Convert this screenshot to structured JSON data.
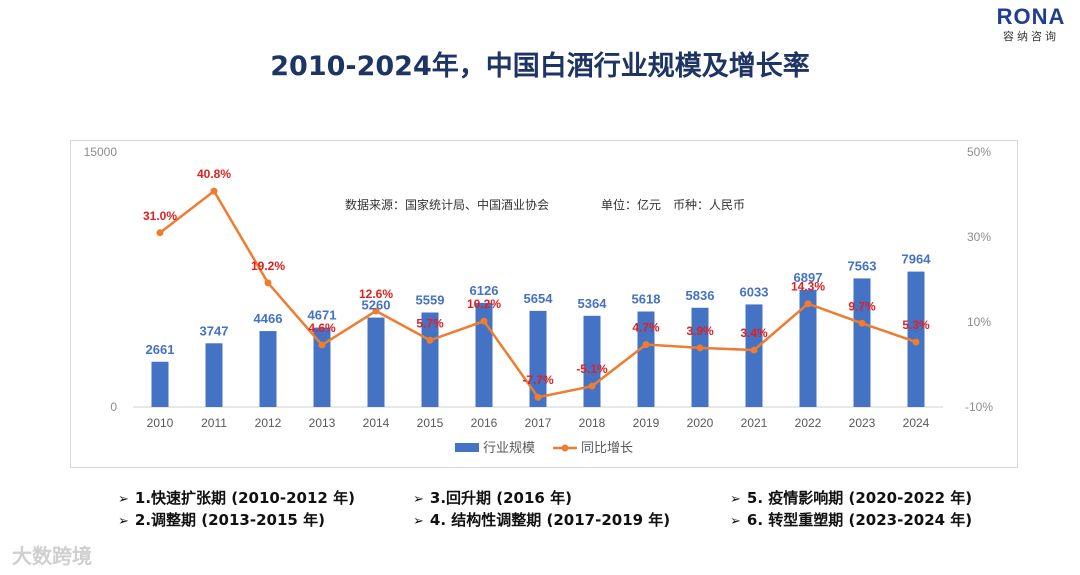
{
  "logo": {
    "brand": "RONA",
    "subtitle": "容纳咨询"
  },
  "title": "2010-2024年，中国白酒行业规模及增长率",
  "source_note": "数据来源：国家统计局、中国酒业协会",
  "unit_note": "单位：亿元　币种：人民币",
  "legend": {
    "bar": "行业规模",
    "line": "同比增长"
  },
  "colors": {
    "bar": "#4472c4",
    "line": "#ed7d31",
    "bar_label": "#4472c4",
    "line_label": "#e02020"
  },
  "chart_data": {
    "type": "bar",
    "categories": [
      "2010",
      "2011",
      "2012",
      "2013",
      "2014",
      "2015",
      "2016",
      "2017",
      "2018",
      "2019",
      "2020",
      "2021",
      "2022",
      "2023",
      "2024"
    ],
    "series": [
      {
        "name": "行业规模",
        "type": "bar",
        "axis": "left",
        "values": [
          2661,
          3747,
          4466,
          4671,
          5260,
          5559,
          6126,
          5654,
          5364,
          5618,
          5836,
          6033,
          6897,
          7563,
          7964
        ],
        "labels": [
          "2661",
          "3747",
          "4466",
          "4671",
          "5260",
          "5559",
          "6126",
          "5654",
          "5364",
          "5618",
          "5836",
          "6033",
          "6897",
          "7563",
          "7964"
        ]
      },
      {
        "name": "同比增长",
        "type": "line",
        "axis": "right",
        "values": [
          31.0,
          40.8,
          19.2,
          4.6,
          12.6,
          5.7,
          10.2,
          -7.7,
          -5.1,
          4.7,
          3.9,
          3.4,
          14.3,
          9.7,
          5.3
        ],
        "labels": [
          "31.0%",
          "40.8%",
          "19.2%",
          "4.6%",
          "12.6%",
          "5.7%",
          "10.2%",
          "-7.7%",
          "-5.1%",
          "4.7%",
          "3.9%",
          "3.4%",
          "14.3%",
          "9.7%",
          "5.3%"
        ]
      }
    ],
    "y_left": {
      "range": [
        0,
        15000
      ],
      "ticks": [
        "0",
        "15000"
      ]
    },
    "y_right": {
      "range": [
        -10,
        50
      ],
      "ticks": [
        "-10%",
        "10%",
        "30%",
        "50%"
      ]
    },
    "grid": false,
    "legend_position": "bottom"
  },
  "notes": [
    "1.快速扩张期 (2010-2012 年)",
    "2.调整期 (2013-2015 年)",
    "3.回升期 (2016 年)",
    "4. 结构性调整期 (2017-2019 年)",
    "5. 疫情影响期 (2020-2022 年)",
    "6. 转型重塑期 (2023-2024 年)"
  ],
  "watermark": "大数跨境"
}
